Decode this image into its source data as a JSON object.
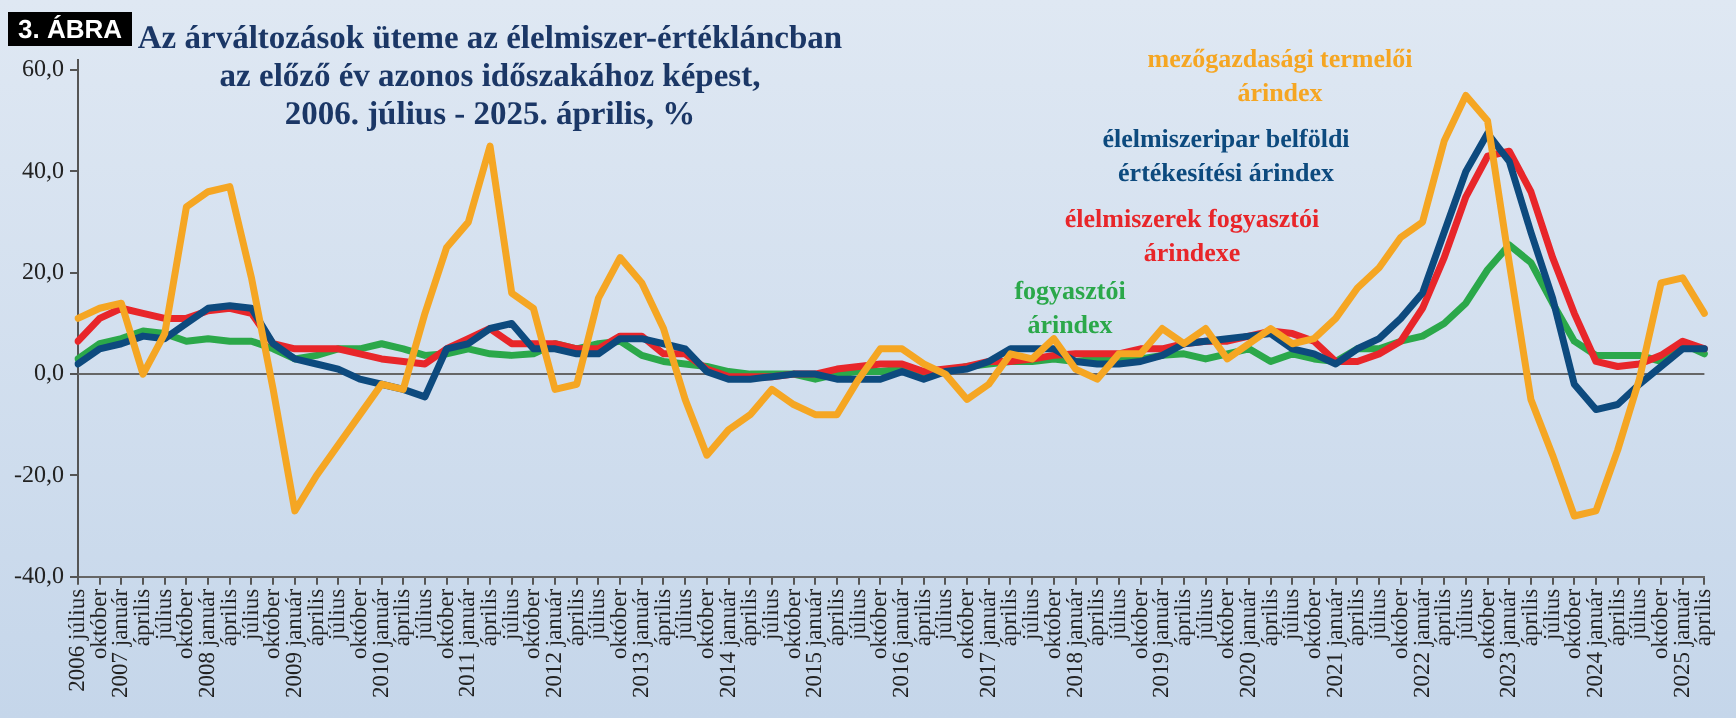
{
  "chart_data": {
    "type": "line",
    "title": "Az árváltozások üteme az élelmiszer-értékláncban\naz előző év azonos időszakához képest,\n2006. július - 2025. április, %",
    "annotations": [
      "3. ÁBRA"
    ],
    "categories": [
      "2006 július",
      "október",
      "2007 január",
      "április",
      "július",
      "október",
      "2008 január",
      "április",
      "július",
      "október",
      "2009 január",
      "április",
      "július",
      "október",
      "2010 január",
      "április",
      "július",
      "október",
      "2011 január",
      "április",
      "július",
      "október",
      "2012 január",
      "április",
      "július",
      "október",
      "2013 január",
      "április",
      "július",
      "október",
      "2014 január",
      "április",
      "július",
      "október",
      "2015 január",
      "április",
      "július",
      "október",
      "2016 január",
      "április",
      "július",
      "október",
      "2017 január",
      "április",
      "július",
      "október",
      "2018 január",
      "április",
      "július",
      "október",
      "2019 január",
      "április",
      "július",
      "október",
      "2020 január",
      "április",
      "július",
      "október",
      "2021 január",
      "április",
      "július",
      "október",
      "2022 január",
      "április",
      "július",
      "október",
      "2023 január",
      "április",
      "július",
      "október",
      "2024 január",
      "április",
      "július",
      "október",
      "2025 január",
      "április"
    ],
    "series": [
      {
        "name": "mezőgazdasági termelői árindex",
        "color": "#f5a623",
        "values": [
          11,
          13,
          14,
          0,
          8,
          33,
          36,
          37,
          19,
          -3,
          -27,
          -20,
          -14,
          -8,
          -2,
          -3,
          12,
          25,
          30,
          45,
          16,
          13,
          -3,
          -2,
          15,
          23,
          18,
          9,
          -5,
          -16,
          -11,
          -8,
          -3,
          -6,
          -8,
          -8,
          -1,
          5,
          5,
          2,
          0,
          -5,
          -2,
          4,
          3,
          7,
          1,
          -1,
          4,
          4,
          9,
          6,
          9,
          3,
          6,
          9,
          6,
          7,
          11,
          17,
          21,
          27,
          30,
          46,
          55,
          50,
          22,
          -5,
          -16,
          -28,
          -27,
          -15,
          -1,
          18,
          19,
          12
        ]
      },
      {
        "name": "élelmiszeripar belföldi értékesítési árindex",
        "color": "#0d4a7e",
        "values": [
          2,
          5,
          6,
          7.5,
          7,
          10,
          13,
          13.5,
          13,
          6,
          3,
          2,
          1,
          -1,
          -2,
          -3,
          -4.5,
          5,
          6,
          9,
          10,
          5,
          5,
          4,
          4,
          7,
          7,
          6,
          5,
          0.5,
          -1,
          -1,
          -0.5,
          0,
          0,
          -1,
          -1,
          -1,
          0.5,
          -1,
          0.5,
          1,
          2.5,
          5,
          5,
          5,
          2.5,
          2,
          2,
          2.5,
          3.7,
          6,
          6.5,
          7,
          7.5,
          8,
          5,
          4,
          2,
          5,
          7,
          11,
          16,
          28,
          40,
          47.5,
          42,
          28,
          15,
          -2,
          -7,
          -6,
          -2,
          1.5,
          5,
          5
        ]
      },
      {
        "name": "élelmiszerek fogyasztói árindexe",
        "color": "#e8262a",
        "values": [
          6.5,
          11,
          13,
          12,
          11,
          11,
          12.5,
          13,
          12,
          6,
          5,
          5,
          5,
          4,
          3,
          2.5,
          2,
          5,
          7,
          9,
          6,
          6,
          6,
          5,
          5,
          7.5,
          7.5,
          4,
          4,
          1,
          -0.5,
          -0.5,
          -0.5,
          0,
          0,
          1,
          1.5,
          2,
          2,
          0.5,
          1,
          1.5,
          2.5,
          2.5,
          3,
          3.7,
          4,
          4,
          4,
          5,
          5,
          6,
          6.5,
          6.5,
          7.5,
          8.5,
          8,
          6.5,
          2.5,
          2.5,
          4,
          6.5,
          13,
          23,
          35,
          43,
          44,
          36,
          23,
          12,
          2.5,
          1.5,
          2,
          3.7,
          6.5,
          5
        ]
      },
      {
        "name": "fogyasztói árindex",
        "color": "#2ba84a",
        "values": [
          3,
          6,
          7,
          8.5,
          8,
          6.5,
          7,
          6.5,
          6.5,
          5,
          3,
          3.7,
          5,
          5,
          6,
          5,
          3.7,
          4,
          5,
          4,
          3.7,
          4,
          6,
          5,
          6,
          6.5,
          3.7,
          2.5,
          2,
          1.5,
          0.5,
          0,
          0,
          0,
          -1,
          0,
          0.5,
          0.5,
          1,
          0,
          0.5,
          1.5,
          2,
          2.5,
          2.5,
          3,
          2.5,
          3,
          3,
          3,
          3.7,
          4,
          3,
          4,
          5,
          2.5,
          4,
          3,
          2.5,
          5,
          5,
          6.5,
          7.5,
          10,
          14,
          20.6,
          25.5,
          22,
          14,
          6.5,
          3.7,
          3.7,
          3.7,
          2.5,
          6,
          4
        ]
      }
    ],
    "ylim": [
      -40,
      62
    ],
    "yticks": [
      {
        "value": -40,
        "label": "-40,0"
      },
      {
        "value": -20,
        "label": "-20,0"
      },
      {
        "value": 0,
        "label": "0,0"
      },
      {
        "value": 20,
        "label": "20,0"
      },
      {
        "value": 40,
        "label": "40,0"
      },
      {
        "value": 60,
        "label": "60,0"
      }
    ],
    "ref_lines": [
      {
        "axis": "y",
        "value": 0,
        "color": "#666666"
      }
    ],
    "grid": false,
    "legend": false,
    "marker": "none",
    "line_style": "solid"
  }
}
